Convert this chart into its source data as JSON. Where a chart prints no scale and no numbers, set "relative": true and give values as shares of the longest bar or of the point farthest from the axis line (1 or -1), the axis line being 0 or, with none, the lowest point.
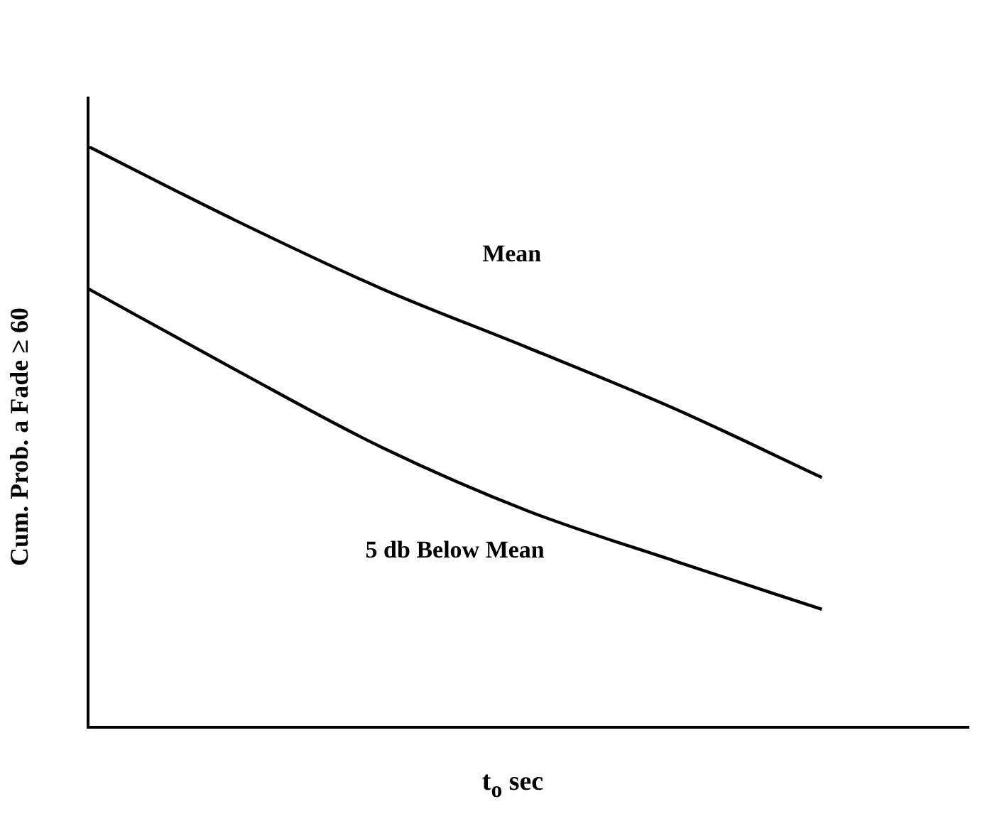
{
  "chart_data": {
    "type": "line",
    "relative": true,
    "ylabel": "Cum. Prob. a Fade ≥ 60",
    "xlabel": "t$_{o}$ sec",
    "categories": [
      null,
      null,
      null,
      null,
      null,
      null,
      null
    ],
    "marker": "none",
    "line_style": "solid",
    "legend": false,
    "grid": false,
    "series": [
      {
        "name": "Mean",
        "color": "#000000",
        "values": [
          1,
          0.873,
          0.755,
          0.653,
          0.548,
          0.43,
          null
        ]
      },
      {
        "name": "5 db Below Mean",
        "color": "#000000",
        "values": [
          0.755,
          0.616,
          0.482,
          0.372,
          0.286,
          0.203,
          null
        ]
      }
    ]
  }
}
